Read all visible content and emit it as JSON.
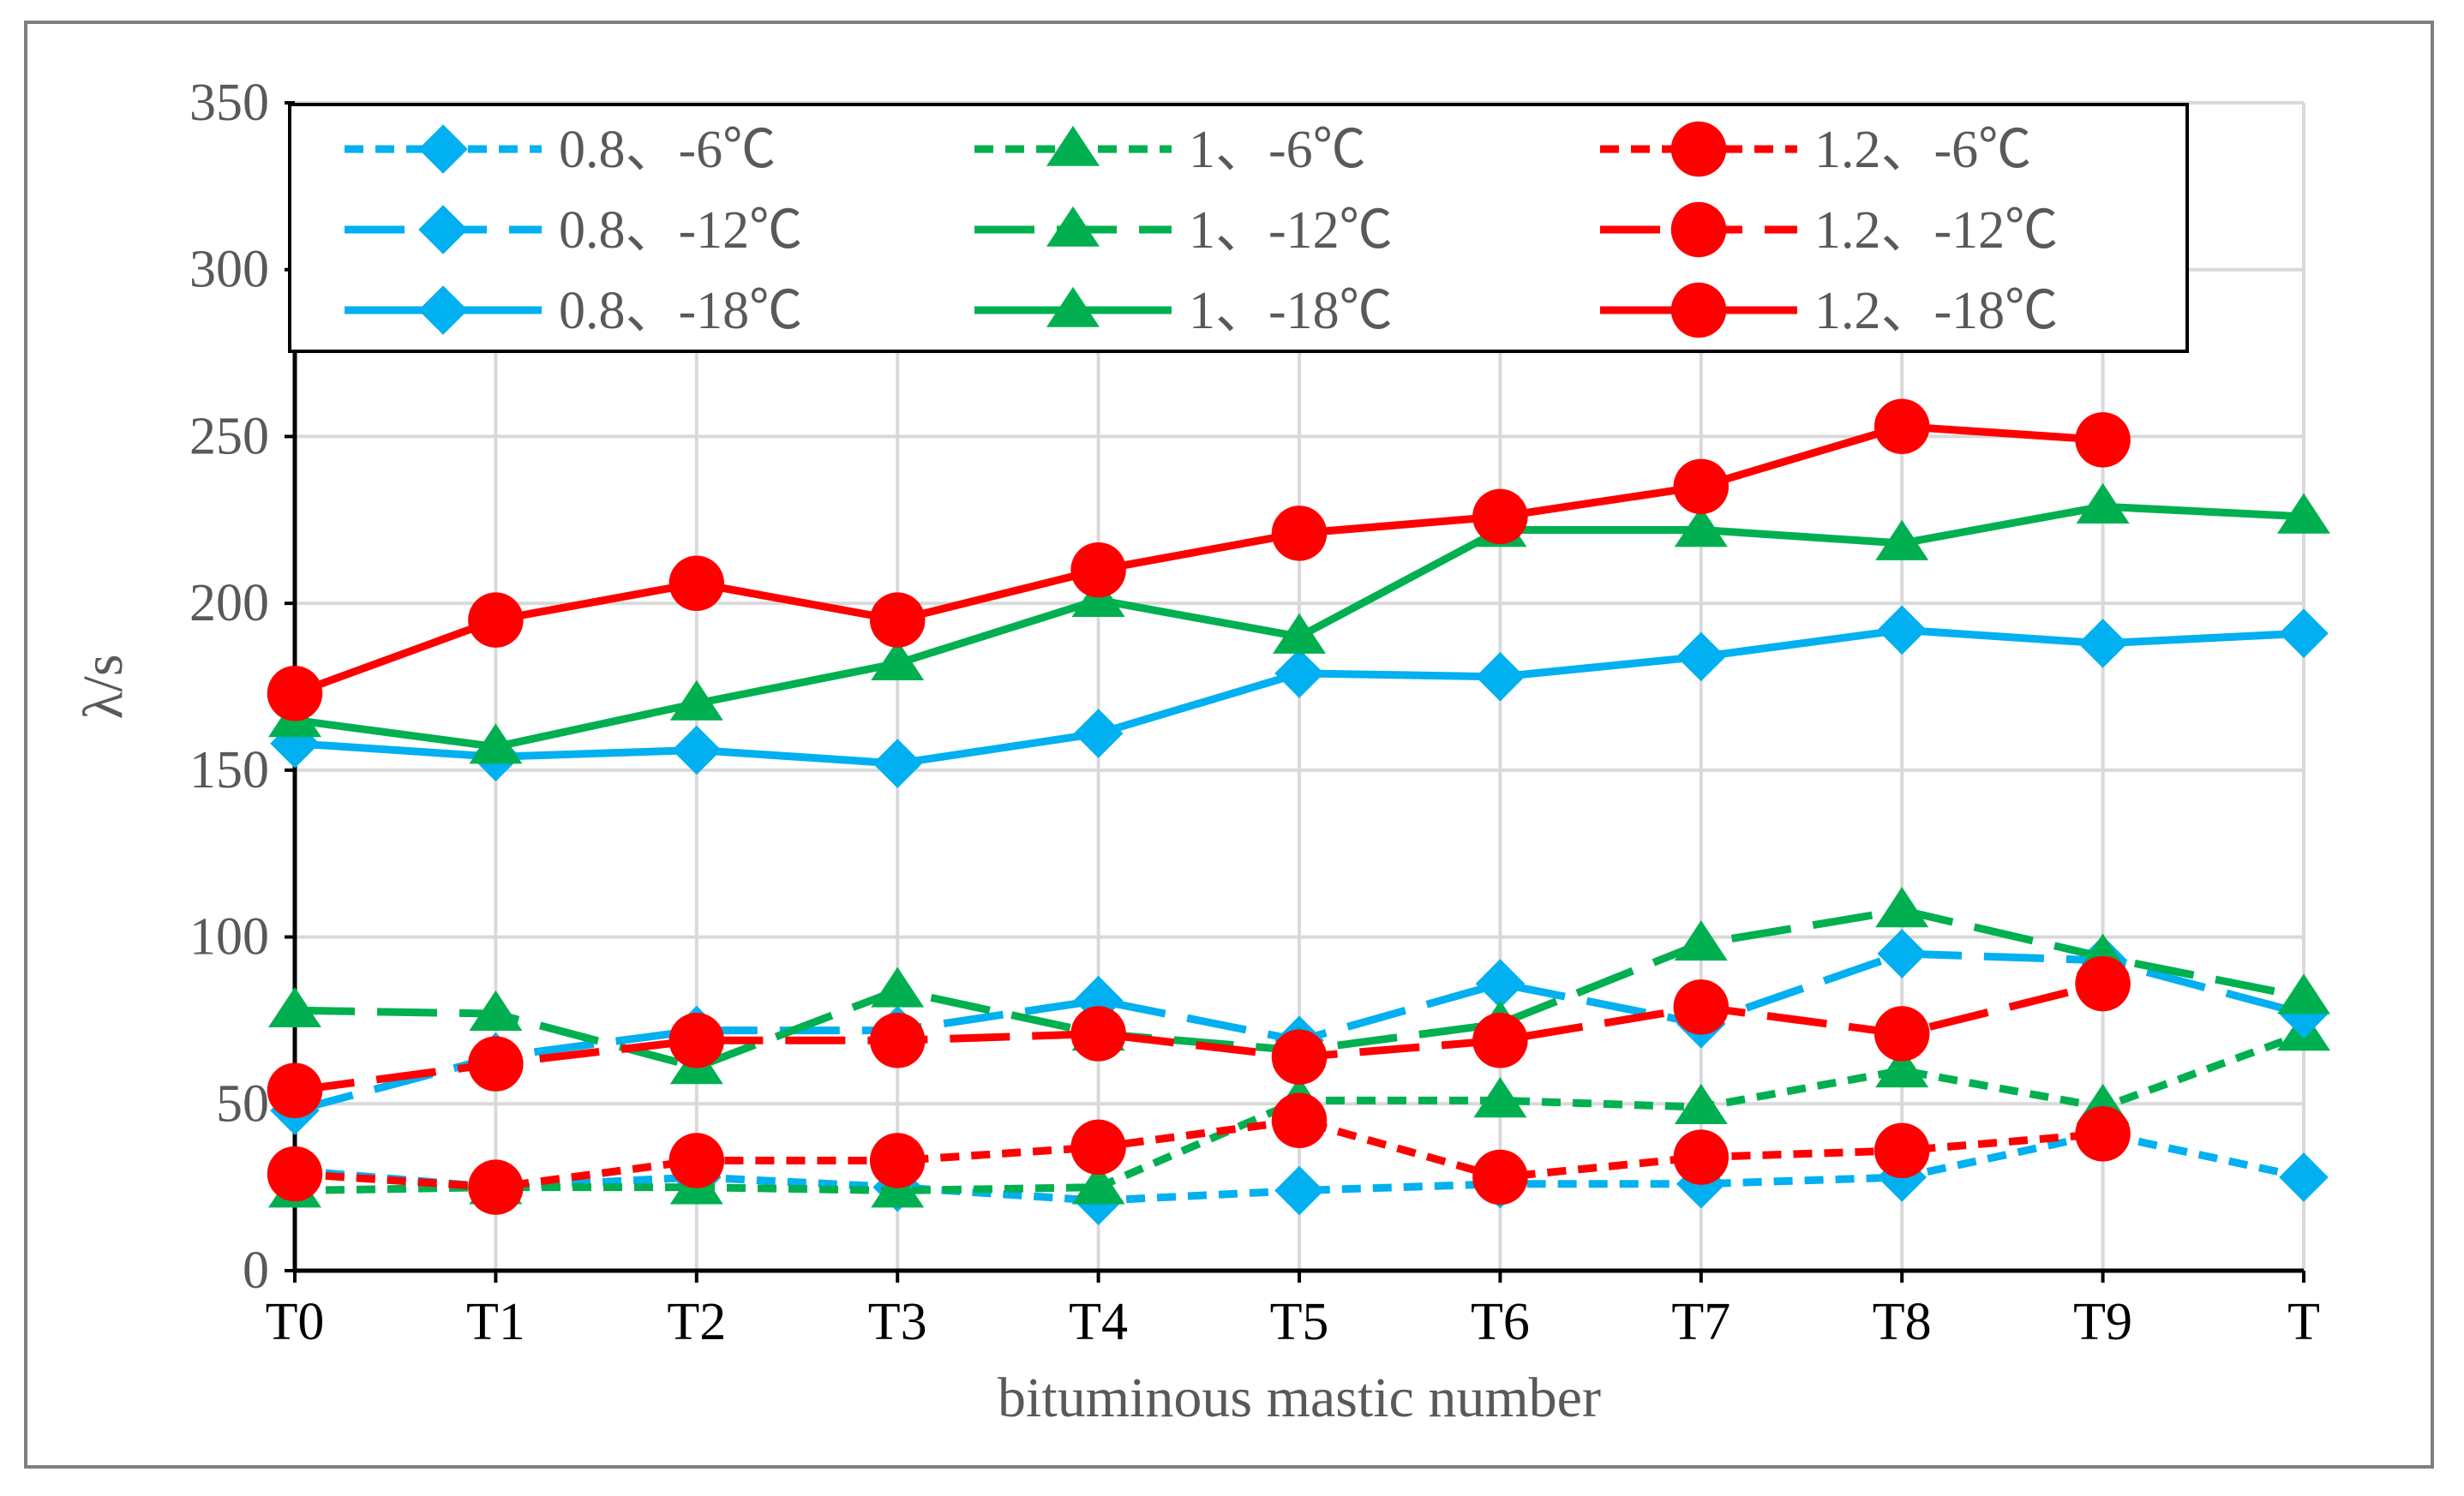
{
  "chart_data": {
    "type": "line",
    "title": "",
    "xlabel": "bituminous mastic number",
    "ylabel": "λ/s",
    "ylim": [
      0,
      350
    ],
    "yticks": [
      0,
      50,
      100,
      150,
      200,
      250,
      300,
      350
    ],
    "categories": [
      "T0",
      "T1",
      "T2",
      "T3",
      "T4",
      "T5",
      "T6",
      "T7",
      "T8",
      "T9",
      "T"
    ],
    "grid": true,
    "legend_position": "top",
    "series": [
      {
        "name": "0.8、-6℃",
        "color": "#00b0f0",
        "style": "short-dash",
        "marker": "diamond",
        "values": [
          30,
          25,
          28,
          25,
          21,
          24,
          26,
          26,
          28,
          41,
          28
        ]
      },
      {
        "name": "1、-6℃",
        "color": "#00b050",
        "style": "short-dash",
        "marker": "triangle",
        "values": [
          24,
          25,
          25,
          24,
          25,
          51,
          51,
          49,
          60,
          49,
          71
        ]
      },
      {
        "name": "1.2、-6℃",
        "color": "#ff0000",
        "style": "short-dash",
        "marker": "circle",
        "values": [
          29,
          25,
          33,
          33,
          37,
          45,
          28,
          34,
          36,
          41,
          null
        ]
      },
      {
        "name": "0.8、-12℃",
        "color": "#00b0f0",
        "style": "long-dash",
        "marker": "diamond",
        "values": [
          48,
          64,
          72,
          72,
          81,
          69,
          86,
          74,
          95,
          93,
          77
        ]
      },
      {
        "name": "1、-12℃",
        "color": "#00b050",
        "style": "long-dash",
        "marker": "triangle",
        "values": [
          78,
          77,
          61,
          84,
          71,
          66,
          74,
          98,
          108,
          94,
          82
        ]
      },
      {
        "name": "1.2、-12℃",
        "color": "#ff0000",
        "style": "long-dash",
        "marker": "circle",
        "values": [
          54,
          62,
          69,
          69,
          71,
          64,
          69,
          79,
          71,
          86,
          null
        ]
      },
      {
        "name": "0.8、-18℃",
        "color": "#00b0f0",
        "style": "solid",
        "marker": "diamond",
        "values": [
          158,
          154,
          156,
          152,
          161,
          179,
          178,
          184,
          192,
          188,
          191
        ]
      },
      {
        "name": "1、-18℃",
        "color": "#00b050",
        "style": "solid",
        "marker": "triangle",
        "values": [
          165,
          157,
          170,
          182,
          201,
          190,
          222,
          222,
          218,
          229,
          226
        ]
      },
      {
        "name": "1.2、-18℃",
        "color": "#ff0000",
        "style": "solid",
        "marker": "circle",
        "values": [
          173,
          195,
          206,
          195,
          210,
          221,
          226,
          235,
          253,
          249,
          null
        ]
      }
    ]
  }
}
